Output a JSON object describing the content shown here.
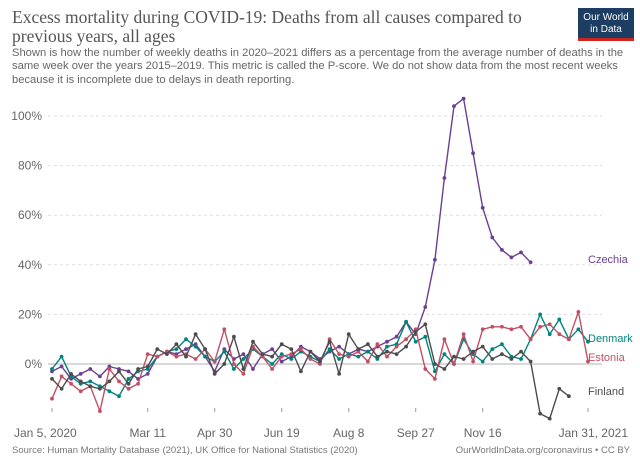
{
  "header": {
    "title": "Excess mortality during COVID-19: Deaths from all causes compared to previous years, all ages",
    "subtitle": "Shown is how the number of weekly deaths in 2020–2021 differs as a percentage from the average number of deaths in the same week over the years 2015–2019. This metric is called the P-score. We do not show data from the most recent weeks because it is incomplete due to delays in death reporting.",
    "logo_line1": "Our World",
    "logo_line2": "in Data"
  },
  "footer": {
    "source": "Source: Human Mortality Database (2021), UK Office for National Statistics (2020)",
    "credit": "OurWorldInData.org/coronavirus • CC BY"
  },
  "chart_data": {
    "type": "line",
    "title": "Excess mortality during COVID-19: Deaths from all causes compared to previous years, all ages",
    "xlabel": "",
    "ylabel": "",
    "x_unit": "week",
    "x_range": [
      1,
      57
    ],
    "ylim": [
      -20,
      110
    ],
    "y_ticks": [
      0,
      20,
      40,
      60,
      80,
      100
    ],
    "y_tick_labels": [
      "0%",
      "20%",
      "40%",
      "60%",
      "80%",
      "100%"
    ],
    "x_ticks": [
      {
        "week": 1,
        "label": "Jan 5, 2020"
      },
      {
        "week": 11,
        "label": "Mar 11"
      },
      {
        "week": 18,
        "label": "Apr 30"
      },
      {
        "week": 25,
        "label": "Jun 19"
      },
      {
        "week": 32,
        "label": "Aug 8"
      },
      {
        "week": 39,
        "label": "Sep 27"
      },
      {
        "week": 46,
        "label": "Nov 16"
      },
      {
        "week": 57,
        "label": "Jan 31, 2021"
      }
    ],
    "grid": true,
    "series": [
      {
        "name": "Czechia",
        "color": "#6d3e91",
        "start_week": 1,
        "values": [
          -3,
          -1,
          -6,
          -4,
          -2,
          -5,
          -1,
          -2,
          -3,
          -6,
          -4,
          3,
          5,
          4,
          6,
          8,
          3,
          -3,
          6,
          2,
          4,
          -2,
          4,
          6,
          1,
          3,
          7,
          5,
          2,
          5,
          7,
          4,
          6,
          5,
          7,
          9,
          11,
          17,
          12,
          23,
          42,
          75,
          104,
          107,
          85,
          63,
          51,
          46,
          43,
          45,
          41
        ]
      },
      {
        "name": "Denmark",
        "color": "#00847e",
        "start_week": 1,
        "values": [
          -2,
          3,
          -5,
          -8,
          -7,
          -9,
          -11,
          -13,
          -6,
          -3,
          -2,
          3,
          5,
          6,
          10,
          7,
          3,
          1,
          5,
          -2,
          2,
          6,
          3,
          0,
          4,
          2,
          5,
          3,
          1,
          6,
          2,
          4,
          3,
          5,
          2,
          7,
          8,
          17,
          9,
          11,
          -3,
          4,
          0,
          10,
          4,
          1,
          6,
          8,
          3,
          2,
          10,
          20,
          12,
          18,
          10,
          14,
          9
        ]
      },
      {
        "name": "Estonia",
        "color": "#c15065",
        "start_week": 1,
        "values": [
          -14,
          -5,
          -8,
          -11,
          -9,
          -19,
          -2,
          -7,
          -10,
          -8,
          4,
          3,
          5,
          3,
          4,
          2,
          6,
          1,
          14,
          0,
          -4,
          7,
          3,
          -2,
          3,
          4,
          6,
          2,
          0,
          10,
          4,
          3,
          5,
          1,
          8,
          3,
          7,
          10,
          14,
          -2,
          -6,
          10,
          0,
          12,
          1,
          14,
          15,
          15,
          14,
          15,
          10,
          15,
          16,
          12,
          10,
          21,
          1
        ]
      },
      {
        "name": "Finland",
        "color": "#4c4c4c",
        "start_week": 1,
        "values": [
          -6,
          -10,
          -4,
          -7,
          -9,
          -10,
          -7,
          -3,
          -8,
          -2,
          -1,
          6,
          4,
          8,
          3,
          12,
          6,
          -4,
          0,
          11,
          -2,
          9,
          4,
          3,
          8,
          6,
          -3,
          5,
          1,
          9,
          -4,
          12,
          6,
          8,
          3,
          5,
          4,
          7,
          13,
          16,
          0,
          -2,
          3,
          2,
          5,
          7,
          2,
          4,
          2,
          5,
          1,
          -20,
          -22,
          -10,
          -13
        ]
      }
    ]
  }
}
